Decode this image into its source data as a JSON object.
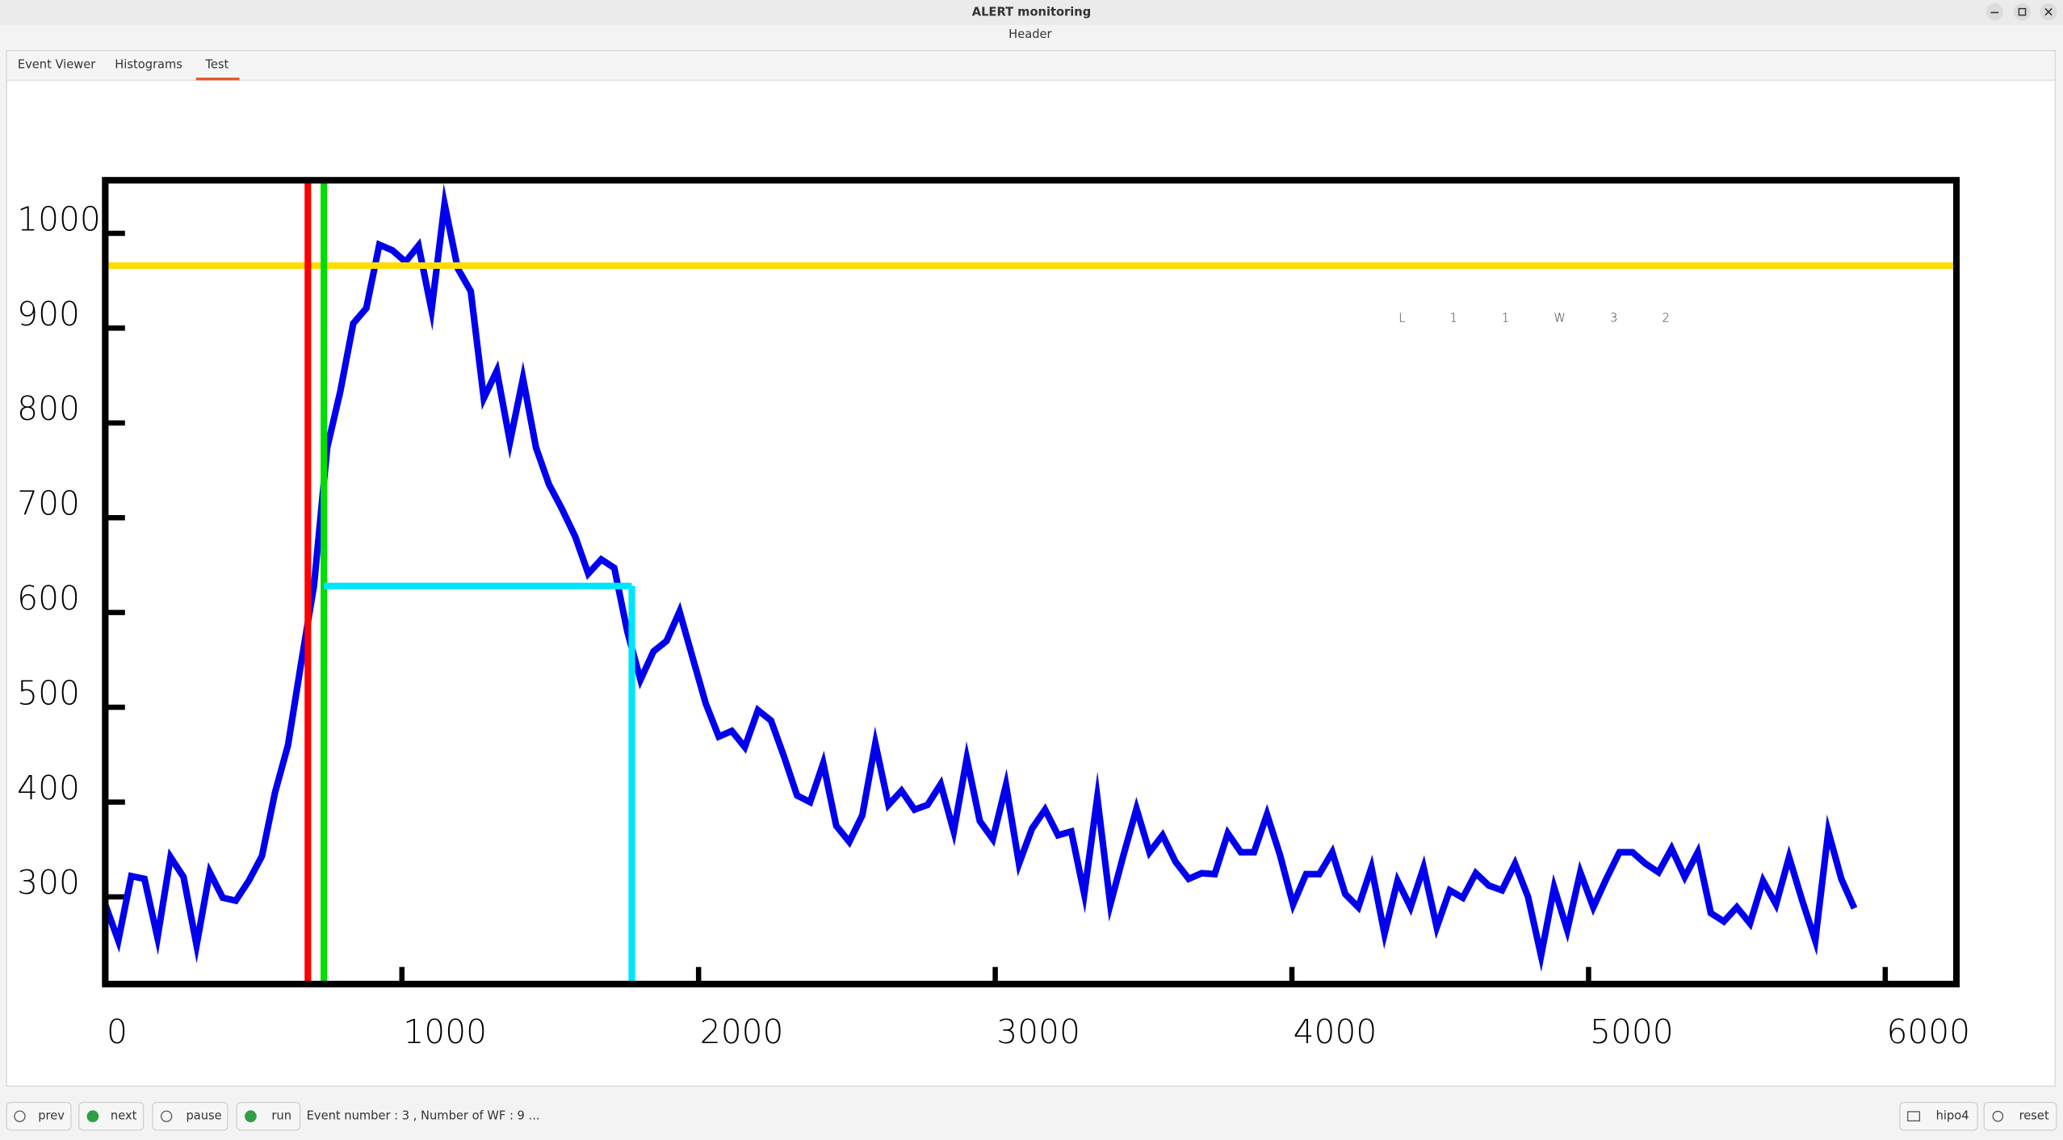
{
  "window": {
    "title": "ALERT monitoring",
    "header": "Header"
  },
  "tabs": [
    "Event Viewer",
    "Histograms",
    "Test"
  ],
  "chart_data": {
    "type": "line",
    "label": "L11W32",
    "label_color": "#ff0000",
    "x": [
      0,
      44,
      88,
      132,
      176,
      220,
      264,
      308,
      352,
      396,
      440,
      484,
      528,
      572,
      616,
      660,
      704,
      748,
      792,
      836,
      880,
      924,
      968,
      1012,
      1056,
      1100,
      1144,
      1188,
      1232,
      1276,
      1320,
      1364,
      1408,
      1452,
      1496,
      1540,
      1584,
      1628,
      1672,
      1716,
      1760,
      1804,
      1848,
      1892,
      1936,
      1980,
      2024,
      2068,
      2112,
      2156,
      2200,
      2244,
      2288,
      2332,
      2376,
      2420,
      2464,
      2508,
      2552,
      2596,
      2640,
      2684,
      2728,
      2772,
      2816,
      2860,
      2904,
      2948,
      2992,
      3036,
      3080,
      3124,
      3168,
      3212,
      3256,
      3300,
      3344,
      3388,
      3432,
      3476,
      3520,
      3564,
      3608,
      3652,
      3696,
      3740,
      3784,
      3828,
      3872,
      3916,
      3960,
      4004,
      4048,
      4092,
      4136,
      4180,
      4224,
      4268,
      4312,
      4356,
      4400,
      4444,
      4488,
      4532,
      4576,
      4620,
      4664,
      4708,
      4752,
      4796,
      4840,
      4884,
      4928,
      4972,
      5016,
      5060,
      5104,
      5148,
      5192,
      5236,
      5280,
      5324,
      5368,
      5412,
      5456,
      5500,
      5544,
      5588,
      5632,
      5676,
      5720,
      5764,
      5808,
      5852,
      5896
    ],
    "values": [
      292,
      254,
      322,
      319,
      257,
      342,
      321,
      249,
      326,
      299,
      296,
      317,
      343,
      410,
      460,
      546,
      629,
      774,
      833,
      905,
      921,
      988,
      982,
      970,
      987,
      919,
      1031,
      963,
      939,
      826,
      855,
      780,
      847,
      774,
      735,
      709,
      680,
      641,
      656,
      647,
      580,
      529,
      559,
      570,
      601,
      552,
      504,
      469,
      475,
      458,
      497,
      486,
      448,
      407,
      400,
      441,
      375,
      358,
      386,
      462,
      397,
      412,
      392,
      397,
      419,
      369,
      446,
      380,
      361,
      418,
      335,
      372,
      392,
      365,
      369,
      303,
      405,
      292,
      344,
      393,
      347,
      365,
      337,
      319,
      325,
      324,
      367,
      347,
      347,
      387,
      344,
      292,
      324,
      324,
      347,
      303,
      289,
      331,
      261,
      317,
      289,
      331,
      268,
      307,
      299,
      325,
      312,
      307,
      335,
      300,
      238,
      310,
      265,
      326,
      289,
      319,
      347,
      347,
      335,
      326,
      351,
      321,
      347,
      283,
      274,
      289,
      272,
      317,
      292,
      342,
      296,
      254,
      369,
      319,
      288
    ],
    "color": "#0000ee",
    "xlim": [
      0,
      6240
    ],
    "ylim": [
      208,
      1056
    ],
    "xticks": [
      0,
      1000,
      2000,
      3000,
      4000,
      5000,
      6000
    ],
    "yticks": [
      300,
      400,
      500,
      600,
      700,
      800,
      900,
      1000
    ],
    "threshold": {
      "value": 966,
      "color": "#ffdd00"
    },
    "vlines": [
      {
        "x": 683,
        "color": "#ff0000"
      },
      {
        "x": 737,
        "color": "#00dd00"
      }
    ],
    "window": {
      "x": [
        737,
        1775
      ],
      "y": 628,
      "color": "#00e5ff"
    }
  },
  "toolbar": {
    "buttons": [
      "prev",
      "next",
      "pause",
      "run"
    ],
    "status": "Event number : 3 , Number of WF : 9 ...",
    "right_buttons": [
      "hipo4",
      "reset"
    ]
  }
}
